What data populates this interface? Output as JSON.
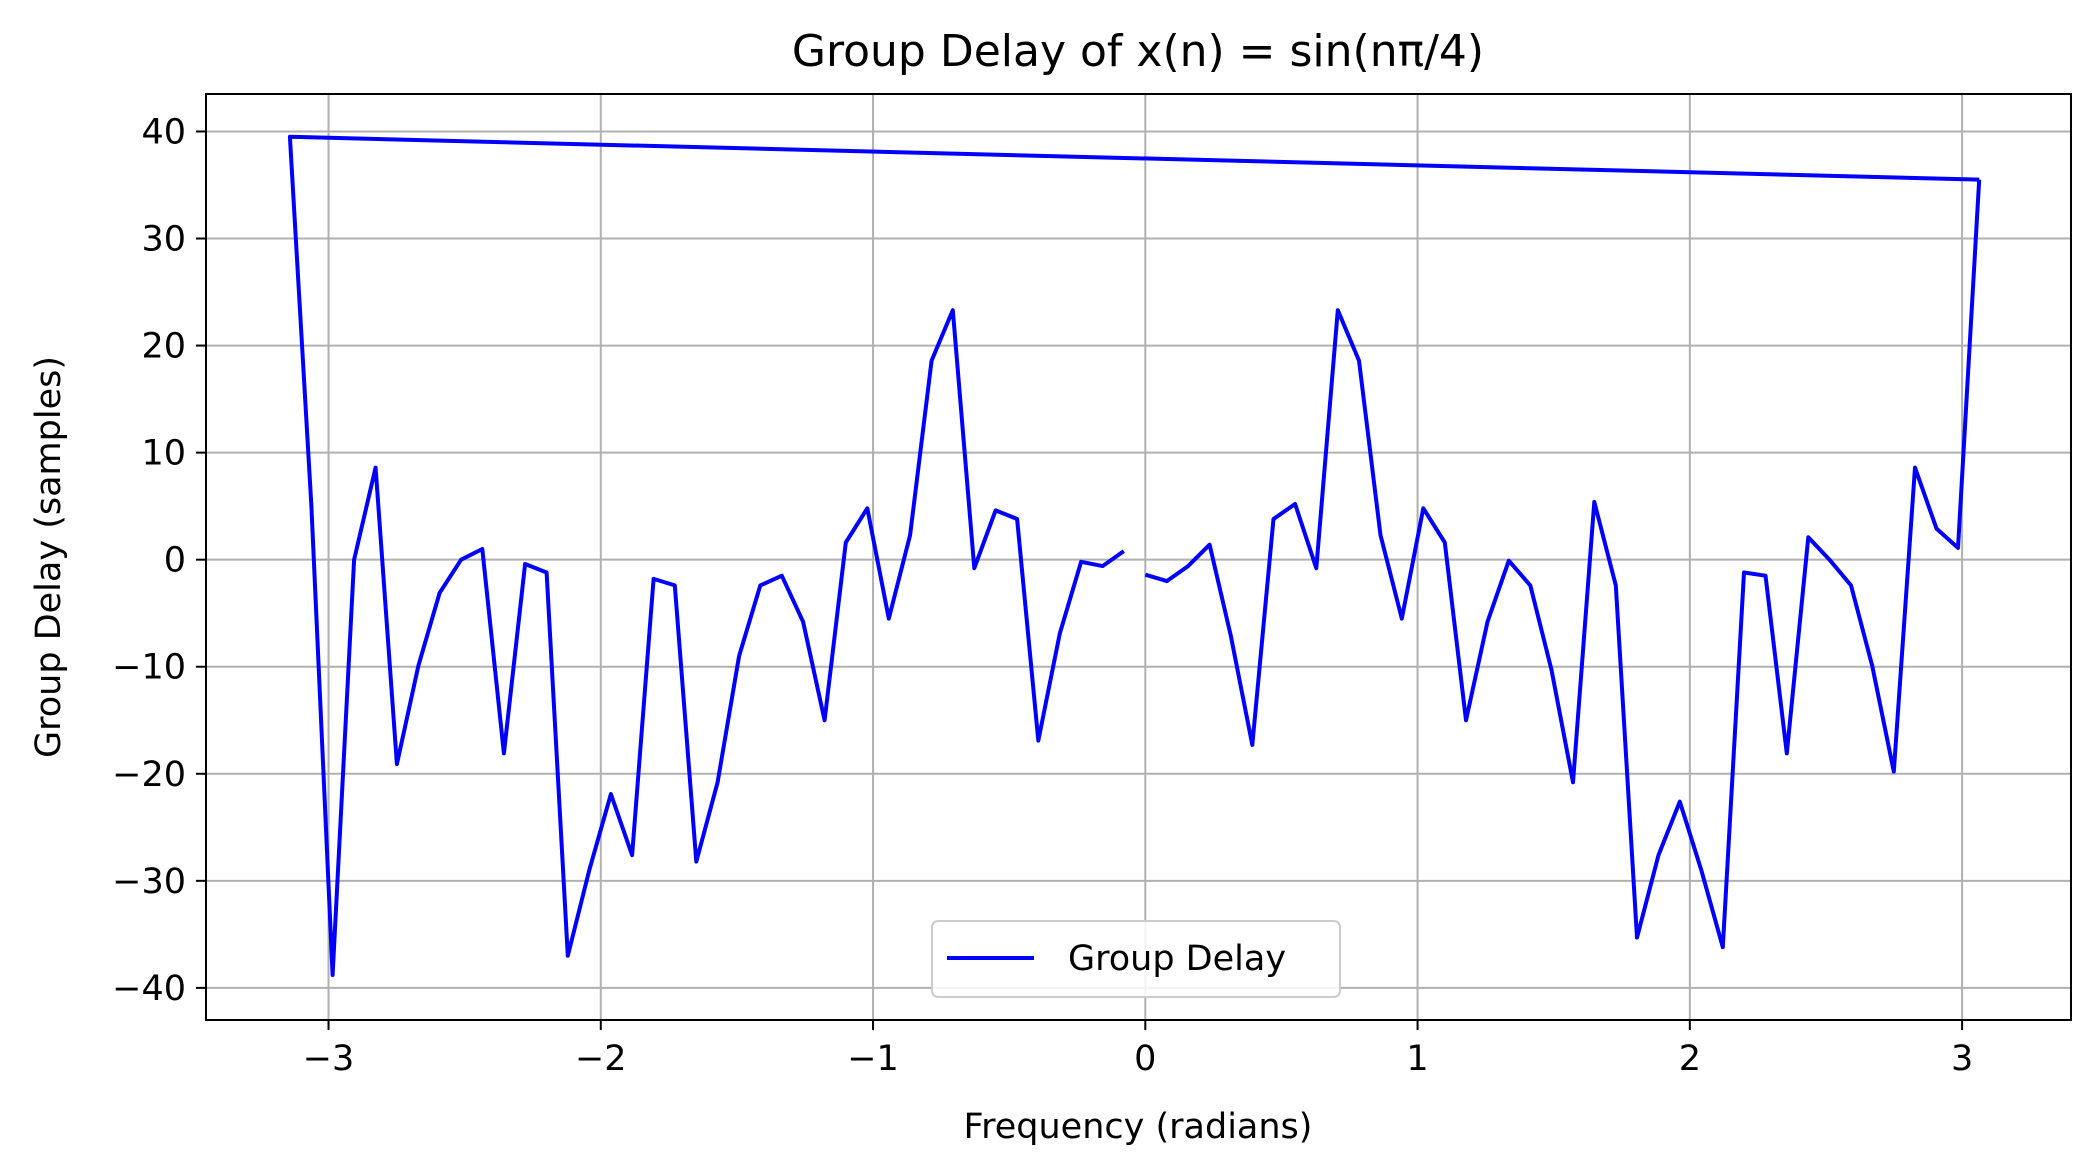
{
  "chart_data": {
    "type": "line",
    "title": "Group Delay of x(n) = sin(nπ/4)",
    "xlabel": "Frequency (radians)",
    "ylabel": "Group Delay (samples)",
    "xlim": [
      -3.45,
      3.4
    ],
    "ylim": [
      -43,
      43.5
    ],
    "xticks": [
      -3,
      -2,
      -1,
      0,
      1,
      2,
      3
    ],
    "xtick_labels": [
      "−3",
      "−2",
      "−1",
      "0",
      "1",
      "2",
      "3"
    ],
    "yticks": [
      -40,
      -30,
      -20,
      -10,
      0,
      10,
      20,
      30,
      40
    ],
    "ytick_labels": [
      "−40",
      "−30",
      "−20",
      "−10",
      "0",
      "10",
      "20",
      "30",
      "40"
    ],
    "grid": true,
    "legend_position": "lower center",
    "series": [
      {
        "name": "Group Delay",
        "color": "#0000ff",
        "segments": [
          [
            [
              3.063,
              35.5
            ],
            [
              -3.142,
              39.5
            ],
            [
              -3.063,
              5.0
            ],
            [
              -2.985,
              -38.8
            ],
            [
              -2.906,
              0.0
            ],
            [
              -2.827,
              8.6
            ],
            [
              -2.749,
              -19.1
            ],
            [
              -2.67,
              -9.9
            ],
            [
              -2.592,
              -3.1
            ],
            [
              -2.513,
              0.0
            ],
            [
              -2.435,
              1.0
            ],
            [
              -2.356,
              -18.1
            ],
            [
              -2.278,
              -0.4
            ],
            [
              -2.199,
              -1.2
            ],
            [
              -2.121,
              -37.0
            ],
            [
              -2.042,
              -29.0
            ],
            [
              -1.963,
              -21.9
            ],
            [
              -1.885,
              -27.6
            ],
            [
              -1.806,
              -1.8
            ],
            [
              -1.728,
              -2.4
            ],
            [
              -1.649,
              -28.2
            ],
            [
              -1.571,
              -20.8
            ],
            [
              -1.492,
              -9.0
            ],
            [
              -1.414,
              -2.4
            ],
            [
              -1.335,
              -1.5
            ],
            [
              -1.257,
              -5.8
            ],
            [
              -1.178,
              -15.0
            ],
            [
              -1.1,
              1.6
            ],
            [
              -1.021,
              4.8
            ],
            [
              -0.942,
              -5.5
            ],
            [
              -0.864,
              2.3
            ],
            [
              -0.785,
              18.6
            ],
            [
              -0.707,
              23.3
            ],
            [
              -0.628,
              -0.8
            ],
            [
              -0.55,
              4.6
            ],
            [
              -0.471,
              3.8
            ],
            [
              -0.393,
              -16.9
            ],
            [
              -0.314,
              -6.9
            ],
            [
              -0.236,
              -0.2
            ],
            [
              -0.157,
              -0.6
            ],
            [
              -0.079,
              0.8
            ]
          ],
          [
            [
              0.0,
              -1.4
            ],
            [
              0.079,
              -2.0
            ],
            [
              0.157,
              -0.6
            ],
            [
              0.236,
              1.4
            ],
            [
              0.314,
              -7.1
            ],
            [
              0.393,
              -17.3
            ],
            [
              0.471,
              3.8
            ],
            [
              0.55,
              5.2
            ],
            [
              0.628,
              -0.8
            ],
            [
              0.707,
              23.3
            ],
            [
              0.785,
              18.6
            ],
            [
              0.864,
              2.3
            ],
            [
              0.942,
              -5.5
            ],
            [
              1.021,
              4.8
            ],
            [
              1.1,
              1.6
            ],
            [
              1.178,
              -15.0
            ],
            [
              1.257,
              -5.8
            ],
            [
              1.335,
              -0.1
            ],
            [
              1.414,
              -2.4
            ],
            [
              1.492,
              -10.3
            ],
            [
              1.571,
              -20.8
            ],
            [
              1.649,
              5.4
            ],
            [
              1.728,
              -2.4
            ],
            [
              1.806,
              -35.3
            ],
            [
              1.885,
              -27.6
            ],
            [
              1.963,
              -22.6
            ],
            [
              2.042,
              -29.0
            ],
            [
              2.121,
              -36.2
            ],
            [
              2.199,
              -1.2
            ],
            [
              2.278,
              -1.5
            ],
            [
              2.356,
              -18.1
            ],
            [
              2.435,
              2.1
            ],
            [
              2.513,
              0.0
            ],
            [
              2.592,
              -2.4
            ],
            [
              2.67,
              -9.9
            ],
            [
              2.749,
              -19.8
            ],
            [
              2.827,
              8.6
            ],
            [
              2.906,
              2.9
            ],
            [
              2.985,
              1.1
            ],
            [
              3.063,
              35.5
            ]
          ]
        ]
      }
    ]
  }
}
